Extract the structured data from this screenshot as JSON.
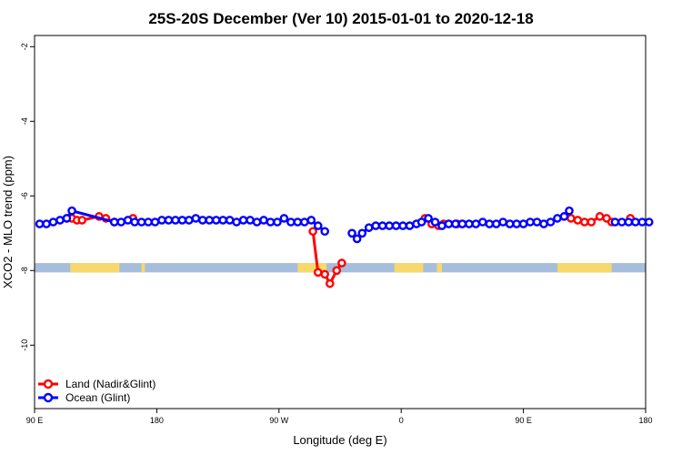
{
  "chart_data": {
    "type": "line",
    "title": "25S-20S December (Ver 10)   2015-01-01 to 2020-12-18",
    "xlabel": "Longitude (deg E)",
    "ylabel": "XCO2 - MLO trend (ppm)",
    "xlim": [
      90,
      450
    ],
    "ylim": [
      -11.7,
      -1.7
    ],
    "x_ticks": [
      {
        "value": 90,
        "label": "90 E"
      },
      {
        "value": 162,
        "label": "180"
      },
      {
        "value": 234,
        "label": "90 W"
      },
      {
        "value": 306,
        "label": "0"
      },
      {
        "value": 378,
        "label": "90 E"
      },
      {
        "value": 450,
        "label": "180"
      }
    ],
    "y_ticks": [
      {
        "value": -2,
        "label": "-2"
      },
      {
        "value": -4,
        "label": "-4"
      },
      {
        "value": -6,
        "label": "-6"
      },
      {
        "value": -8,
        "label": "-8"
      },
      {
        "value": -10,
        "label": "-10"
      }
    ],
    "land_mask_band": {
      "y_range": [
        -8.05,
        -7.8
      ],
      "ocean_color": "#a6bddb",
      "land_color": "#f7d86c",
      "land_segments": [
        [
          111,
          140
        ],
        [
          153,
          155
        ],
        [
          245,
          262
        ],
        [
          302,
          319
        ],
        [
          327,
          330
        ],
        [
          398,
          430
        ]
      ]
    },
    "series": [
      {
        "name": "Land (Nadir&Glint)",
        "color": "#ff0000",
        "segments": [
          [
            [
              109,
              -6.6
            ],
            [
              112,
              -6.6
            ],
            [
              115,
              -6.65
            ],
            [
              118,
              -6.65
            ],
            [
              128,
              -6.55
            ],
            [
              132,
              -6.6
            ],
            [
              137,
              -6.7
            ]
          ],
          [
            [
              148,
              -6.6
            ]
          ],
          [
            [
              254,
              -6.95
            ],
            [
              257,
              -8.05
            ],
            [
              261,
              -8.1
            ],
            [
              264,
              -8.35
            ],
            [
              268,
              -8.0
            ],
            [
              271,
              -7.8
            ]
          ],
          [
            [
              320,
              -6.6
            ],
            [
              324,
              -6.75
            ],
            [
              328,
              -6.8
            ],
            [
              331,
              -6.75
            ],
            [
              339,
              -6.75
            ],
            [
              342,
              -6.75
            ]
          ],
          [
            [
              406,
              -6.6
            ],
            [
              410,
              -6.65
            ],
            [
              414,
              -6.7
            ],
            [
              418,
              -6.7
            ],
            [
              423,
              -6.55
            ],
            [
              427,
              -6.6
            ],
            [
              430,
              -6.7
            ]
          ],
          [
            [
              441,
              -6.6
            ]
          ]
        ]
      },
      {
        "name": "Ocean (Glint)",
        "color": "#0000ff",
        "segments": [
          [
            [
              93,
              -6.75
            ],
            [
              97,
              -6.75
            ],
            [
              101,
              -6.7
            ],
            [
              105,
              -6.65
            ],
            [
              109,
              -6.6
            ],
            [
              112,
              -6.4
            ],
            [
              137,
              -6.7
            ],
            [
              141,
              -6.7
            ],
            [
              145,
              -6.65
            ],
            [
              149,
              -6.7
            ],
            [
              153,
              -6.7
            ],
            [
              157,
              -6.7
            ],
            [
              161,
              -6.7
            ],
            [
              165,
              -6.65
            ],
            [
              169,
              -6.65
            ],
            [
              173,
              -6.65
            ],
            [
              177,
              -6.65
            ],
            [
              181,
              -6.65
            ],
            [
              185,
              -6.6
            ],
            [
              189,
              -6.65
            ],
            [
              193,
              -6.65
            ],
            [
              197,
              -6.65
            ],
            [
              201,
              -6.65
            ],
            [
              205,
              -6.65
            ],
            [
              209,
              -6.7
            ],
            [
              213,
              -6.65
            ],
            [
              217,
              -6.65
            ],
            [
              221,
              -6.7
            ],
            [
              225,
              -6.65
            ],
            [
              229,
              -6.7
            ],
            [
              233,
              -6.7
            ],
            [
              237,
              -6.6
            ],
            [
              241,
              -6.7
            ],
            [
              245,
              -6.7
            ],
            [
              249,
              -6.7
            ],
            [
              253,
              -6.65
            ],
            [
              257,
              -6.8
            ],
            [
              261,
              -6.95
            ]
          ],
          [
            [
              277,
              -7.0
            ],
            [
              280,
              -7.15
            ],
            [
              283,
              -7.0
            ],
            [
              287,
              -6.85
            ],
            [
              291,
              -6.8
            ],
            [
              295,
              -6.8
            ],
            [
              299,
              -6.8
            ],
            [
              303,
              -6.8
            ],
            [
              307,
              -6.8
            ],
            [
              311,
              -6.8
            ],
            [
              315,
              -6.75
            ],
            [
              318,
              -6.7
            ],
            [
              322,
              -6.6
            ],
            [
              326,
              -6.7
            ],
            [
              330,
              -6.8
            ],
            [
              334,
              -6.75
            ],
            [
              338,
              -6.75
            ],
            [
              342,
              -6.75
            ],
            [
              346,
              -6.75
            ],
            [
              350,
              -6.75
            ],
            [
              354,
              -6.7
            ],
            [
              358,
              -6.75
            ],
            [
              362,
              -6.75
            ],
            [
              366,
              -6.7
            ],
            [
              370,
              -6.75
            ],
            [
              374,
              -6.75
            ],
            [
              378,
              -6.75
            ],
            [
              382,
              -6.7
            ],
            [
              386,
              -6.7
            ],
            [
              390,
              -6.75
            ],
            [
              394,
              -6.7
            ],
            [
              398,
              -6.6
            ],
            [
              402,
              -6.55
            ],
            [
              405,
              -6.4
            ]
          ],
          [
            [
              432,
              -6.7
            ],
            [
              436,
              -6.7
            ],
            [
              440,
              -6.7
            ],
            [
              444,
              -6.7
            ],
            [
              448,
              -6.7
            ],
            [
              452,
              -6.7
            ]
          ]
        ]
      }
    ],
    "legend": {
      "position": "bottom-left",
      "entries": [
        {
          "label": "Land (Nadir&Glint)",
          "color": "#ff0000"
        },
        {
          "label": "Ocean (Glint)",
          "color": "#0000ff"
        }
      ]
    }
  }
}
